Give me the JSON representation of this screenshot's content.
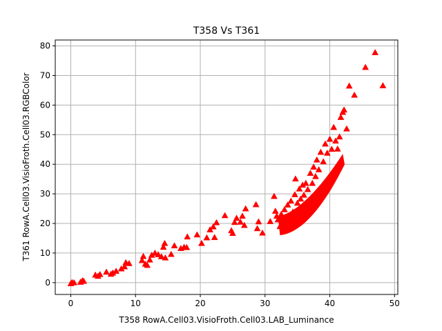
{
  "chart_data": {
    "type": "scatter",
    "title": "T358 Vs T361",
    "xlabel": "T358 RowA.Cell03.VisioFroth.Cell03.LAB_Luminance",
    "ylabel": "T361 RowA.Cell03.VisioFroth.Cell03.RGBColor",
    "xlim": [
      -2.4,
      50.5
    ],
    "ylim": [
      -4,
      82
    ],
    "xticks": [
      0,
      10,
      20,
      30,
      40,
      50
    ],
    "yticks": [
      0,
      10,
      20,
      30,
      40,
      50,
      60,
      70,
      80
    ],
    "grid": true,
    "marker": "triangle",
    "color": "#ff0000",
    "series": [
      {
        "points": [
          [
            0.0,
            -0.3
          ],
          [
            0.2,
            0.1
          ],
          [
            0.5,
            0.0
          ],
          [
            1.5,
            0.2
          ],
          [
            1.8,
            0.7
          ],
          [
            2.0,
            0.5
          ],
          [
            3.8,
            2.6
          ],
          [
            4.2,
            2.2
          ],
          [
            4.5,
            2.8
          ],
          [
            5.5,
            3.6
          ],
          [
            6.2,
            2.9
          ],
          [
            6.5,
            3.3
          ],
          [
            7.0,
            3.9
          ],
          [
            7.8,
            4.7
          ],
          [
            8.3,
            5.4
          ],
          [
            8.5,
            6.8
          ],
          [
            9.0,
            6.5
          ],
          [
            11.0,
            7.5
          ],
          [
            11.2,
            8.9
          ],
          [
            11.5,
            6.3
          ],
          [
            11.8,
            5.9
          ],
          [
            12.2,
            7.7
          ],
          [
            12.5,
            9.3
          ],
          [
            13.0,
            10.0
          ],
          [
            13.5,
            9.5
          ],
          [
            14.0,
            8.8
          ],
          [
            14.3,
            12.0
          ],
          [
            14.5,
            13.3
          ],
          [
            14.6,
            8.4
          ],
          [
            15.5,
            9.6
          ],
          [
            16.0,
            12.5
          ],
          [
            17.0,
            11.6
          ],
          [
            17.5,
            12.0
          ],
          [
            17.9,
            11.9
          ],
          [
            18.0,
            15.5
          ],
          [
            19.5,
            16.2
          ],
          [
            20.2,
            13.3
          ],
          [
            21.0,
            15.2
          ],
          [
            21.5,
            17.9
          ],
          [
            22.0,
            18.9
          ],
          [
            22.2,
            15.3
          ],
          [
            22.5,
            20.3
          ],
          [
            23.8,
            22.7
          ],
          [
            24.8,
            17.6
          ],
          [
            25.0,
            16.7
          ],
          [
            25.3,
            20.4
          ],
          [
            25.6,
            21.8
          ],
          [
            26.2,
            20.5
          ],
          [
            26.5,
            22.5
          ],
          [
            26.8,
            19.4
          ],
          [
            27.0,
            25.0
          ],
          [
            28.6,
            26.4
          ],
          [
            28.8,
            18.3
          ],
          [
            29.0,
            20.6
          ],
          [
            29.6,
            16.8
          ],
          [
            30.8,
            20.7
          ],
          [
            31.4,
            29.2
          ],
          [
            31.6,
            24.2
          ],
          [
            31.8,
            22.5
          ],
          [
            32.0,
            21.3
          ],
          [
            32.3,
            19.0
          ],
          [
            32.5,
            23.1
          ],
          [
            32.7,
            20.6
          ],
          [
            33.0,
            24.7
          ],
          [
            33.2,
            22.2
          ],
          [
            33.5,
            26.3
          ],
          [
            33.8,
            21.4
          ],
          [
            34.0,
            27.6
          ],
          [
            34.3,
            23.9
          ],
          [
            34.6,
            29.8
          ],
          [
            34.7,
            35.1
          ],
          [
            35.0,
            26.9
          ],
          [
            35.3,
            31.7
          ],
          [
            35.5,
            28.3
          ],
          [
            35.8,
            33.0
          ],
          [
            36.0,
            29.6
          ],
          [
            36.3,
            33.6
          ],
          [
            36.6,
            31.5
          ],
          [
            37.0,
            37.0
          ],
          [
            37.3,
            33.6
          ],
          [
            37.5,
            39.1
          ],
          [
            37.8,
            35.9
          ],
          [
            38.0,
            41.5
          ],
          [
            38.3,
            38.2
          ],
          [
            38.6,
            44.1
          ],
          [
            39.0,
            40.9
          ],
          [
            39.3,
            46.9
          ],
          [
            39.6,
            43.8
          ],
          [
            40.0,
            48.5
          ],
          [
            40.3,
            45.1
          ],
          [
            40.6,
            52.5
          ],
          [
            40.9,
            47.9
          ],
          [
            41.2,
            45.2
          ],
          [
            41.5,
            49.3
          ],
          [
            41.7,
            55.9
          ],
          [
            42.0,
            57.6
          ],
          [
            42.2,
            58.4
          ],
          [
            42.6,
            52.0
          ],
          [
            43.0,
            66.5
          ],
          [
            43.8,
            63.4
          ],
          [
            45.5,
            72.8
          ],
          [
            47.0,
            77.8
          ],
          [
            48.2,
            66.6
          ]
        ]
      }
    ]
  }
}
